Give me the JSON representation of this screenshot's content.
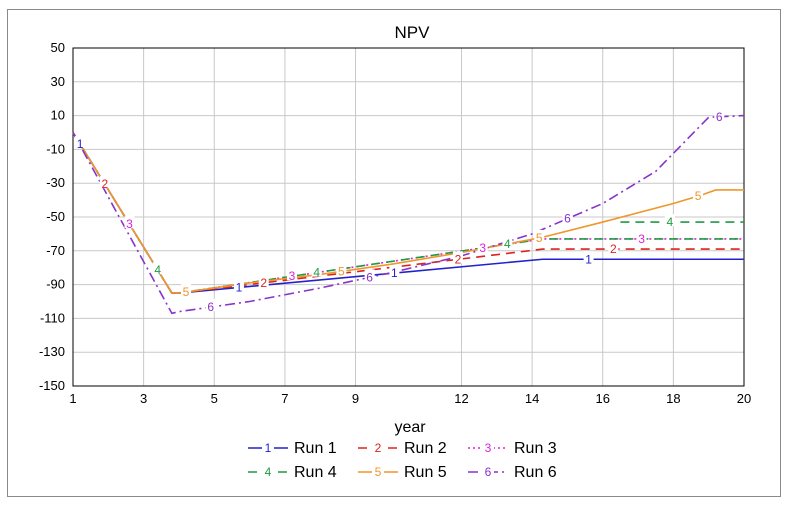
{
  "chart_data": {
    "type": "line",
    "title": "NPV",
    "xlabel": "year",
    "ylabel": "",
    "xlim": [
      1,
      20
    ],
    "ylim": [
      -150,
      50
    ],
    "x_ticks": [
      "1",
      "3",
      "5",
      "7",
      "9",
      "12",
      "14",
      "16",
      "18",
      "20"
    ],
    "x_tick_values": [
      1,
      3,
      5,
      7,
      9,
      12,
      14,
      16,
      18,
      20
    ],
    "y_ticks": [
      "50",
      "30",
      "10",
      "-10",
      "-30",
      "-50",
      "-70",
      "-90",
      "-110",
      "-130",
      "-150"
    ],
    "y_tick_values": [
      50,
      30,
      10,
      -10,
      -30,
      -50,
      -70,
      -90,
      -110,
      -130,
      -150
    ],
    "grid": true,
    "legend_position": "bottom",
    "series": [
      {
        "name": "Run 1",
        "marker": "1",
        "color": "#2222cc",
        "dash": "solid",
        "x": [
          1,
          3.8,
          4,
          14.3,
          20
        ],
        "y": [
          0,
          -95,
          -95,
          -75,
          -75
        ],
        "markers_at": [
          1.2,
          5.7,
          10.1,
          15.6
        ]
      },
      {
        "name": "Run 2",
        "marker": "2",
        "color": "#dd2222",
        "dash": "dashed",
        "x": [
          1,
          3.8,
          4,
          14.3,
          20
        ],
        "y": [
          0,
          -95,
          -95,
          -69,
          -69
        ],
        "markers_at": [
          1.9,
          6.4,
          11.9,
          16.3
        ]
      },
      {
        "name": "Run 3",
        "marker": "3",
        "color": "#e020e0",
        "dash": "dotted",
        "x": [
          1,
          3.8,
          4,
          14.3,
          20
        ],
        "y": [
          0,
          -95,
          -95,
          -63,
          -63
        ],
        "markers_at": [
          2.6,
          7.2,
          12.6,
          17.1
        ]
      },
      {
        "name": "Run 4",
        "marker": "4",
        "color": "#229944",
        "dash": "dashed",
        "x": [
          1,
          3.8,
          4,
          14.3,
          20
        ],
        "y": [
          0,
          -95,
          -95,
          -63,
          -63
        ],
        "x2": [
          16.5,
          20
        ],
        "y2": [
          -53,
          -53
        ],
        "markers_at": [
          3.4,
          7.9,
          13.3,
          17.9
        ]
      },
      {
        "name": "Run 5",
        "marker": "5",
        "color": "#f0962a",
        "dash": "solid",
        "x": [
          1,
          3.8,
          4,
          6,
          8,
          10,
          12,
          14.3,
          16,
          18,
          18.8,
          19.2,
          20
        ],
        "y": [
          0,
          -95,
          -95,
          -89,
          -84,
          -78,
          -71,
          -62,
          -53,
          -42,
          -37,
          -34,
          -34
        ],
        "markers_at": [
          4.2,
          8.6,
          14.2,
          18.7
        ]
      },
      {
        "name": "Run 6",
        "marker": "6",
        "color": "#8833cc",
        "dash": "dashdot",
        "x": [
          1,
          3.8,
          4,
          6,
          8,
          10,
          12,
          14,
          16,
          17.5,
          19,
          20
        ],
        "y": [
          0,
          -107,
          -106,
          -100,
          -92,
          -83,
          -73,
          -60,
          -42,
          -23,
          9,
          10
        ],
        "markers_at": [
          4.9,
          9.4,
          15.0,
          19.3
        ]
      }
    ]
  }
}
